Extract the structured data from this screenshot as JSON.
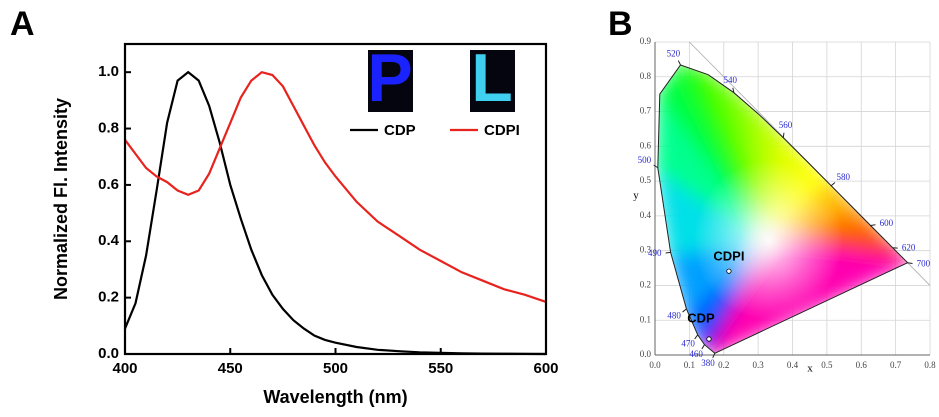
{
  "chart_data": [
    {
      "type": "line",
      "panel": "A",
      "xlabel": "Wavelength (nm)",
      "ylabel": "Normalized Fl. Intensity",
      "x": [
        400,
        405,
        410,
        415,
        420,
        425,
        430,
        435,
        440,
        445,
        450,
        455,
        460,
        465,
        470,
        475,
        480,
        485,
        490,
        495,
        500,
        510,
        520,
        530,
        540,
        550,
        560,
        570,
        580,
        590,
        600
      ],
      "xlim": [
        400,
        600
      ],
      "ylim": [
        0,
        1.1
      ],
      "xticks": [
        400,
        450,
        500,
        550,
        600
      ],
      "yticks": [
        {
          "value": 0,
          "label": "0.0"
        },
        0.2,
        0.4,
        0.6,
        0.8,
        {
          "value": 1,
          "label": "1.0"
        }
      ],
      "legend": "upper right",
      "inset_labels": [
        "P",
        "L"
      ],
      "series": [
        {
          "name": "CDP",
          "color": "#000000",
          "values": [
            0.09,
            0.18,
            0.35,
            0.58,
            0.82,
            0.97,
            1.0,
            0.97,
            0.88,
            0.75,
            0.6,
            0.48,
            0.37,
            0.28,
            0.21,
            0.16,
            0.12,
            0.09,
            0.065,
            0.05,
            0.04,
            0.025,
            0.015,
            0.01,
            0.006,
            0.004,
            0.002,
            0.0015,
            0.001,
            0.0005,
            0
          ]
        },
        {
          "name": "CDPI",
          "color": "#e8231e",
          "values": [
            0.76,
            0.71,
            0.66,
            0.63,
            0.61,
            0.58,
            0.565,
            0.58,
            0.64,
            0.73,
            0.82,
            0.91,
            0.97,
            1.0,
            0.99,
            0.95,
            0.88,
            0.81,
            0.74,
            0.68,
            0.63,
            0.54,
            0.47,
            0.42,
            0.37,
            0.33,
            0.29,
            0.26,
            0.23,
            0.21,
            0.185
          ]
        }
      ]
    },
    {
      "type": "scatter",
      "panel": "B",
      "xlabel": "x",
      "ylabel": "y",
      "xlim": [
        0,
        0.8
      ],
      "ylim": [
        0,
        0.9
      ],
      "xticks": [
        {
          "value": 0,
          "label": "0.0"
        },
        0.1,
        0.2,
        0.3,
        0.4,
        0.5,
        0.6,
        0.7,
        0.8
      ],
      "yticks": [
        {
          "value": 0,
          "label": "0.0"
        },
        0.1,
        0.2,
        0.3,
        0.4,
        0.5,
        0.6,
        0.7,
        0.8,
        0.9
      ],
      "grid": true,
      "locus_labels": [
        "380",
        "460",
        "470",
        "480",
        "490",
        "500",
        "520",
        "540",
        "560",
        "580",
        "600",
        "620",
        "700"
      ],
      "series": [
        {
          "name": "CDP",
          "x": [
            0.157
          ],
          "values": [
            0.046
          ]
        },
        {
          "name": "CDPI",
          "x": [
            0.215
          ],
          "values": [
            0.241
          ]
        }
      ]
    }
  ]
}
